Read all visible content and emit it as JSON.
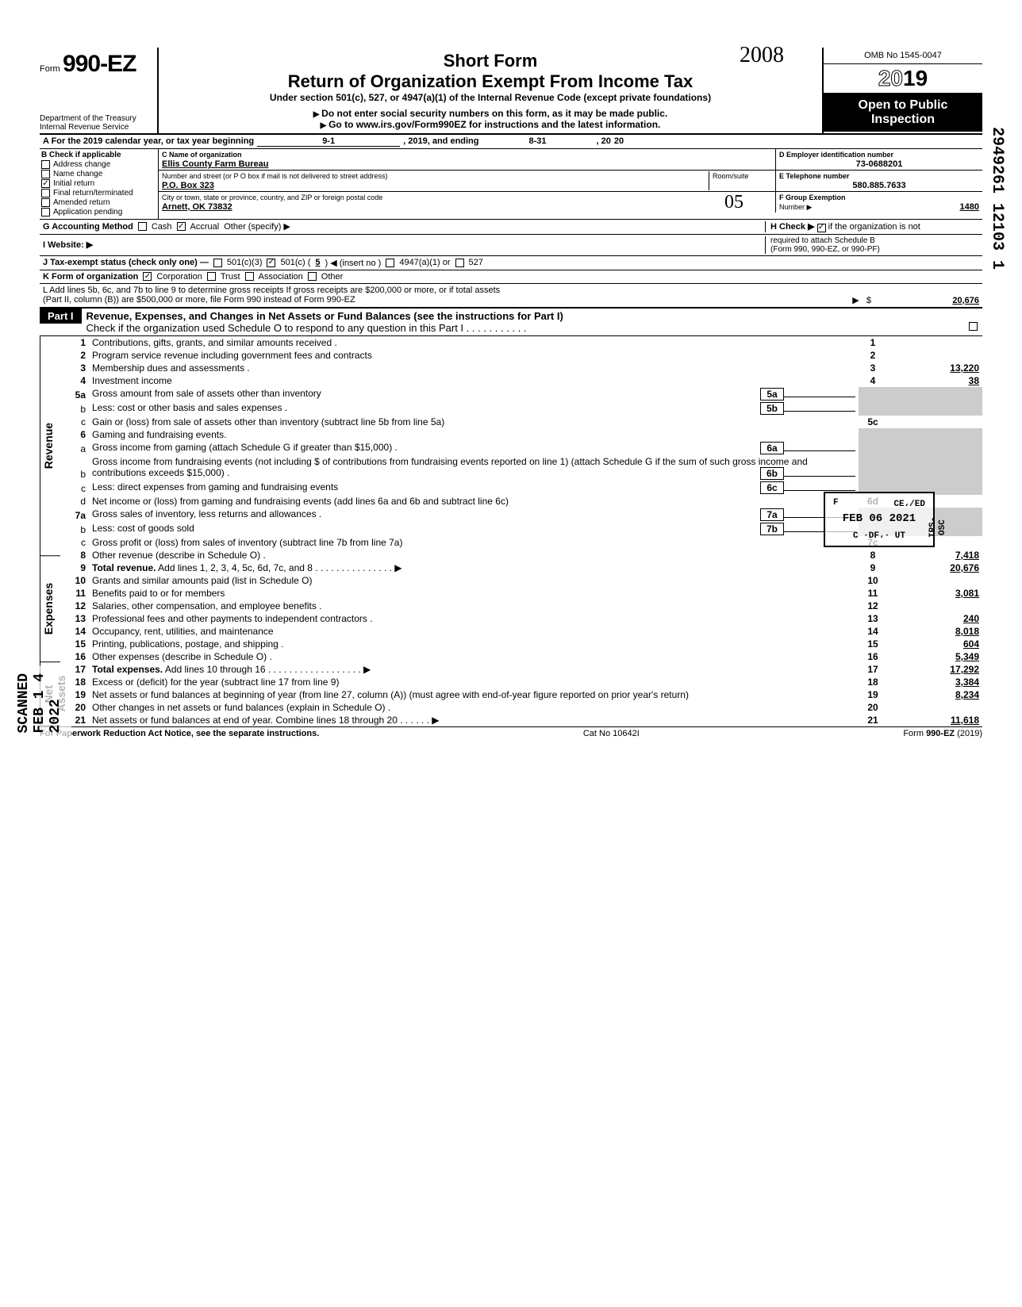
{
  "header": {
    "form_label": "Form",
    "form_number": "990-EZ",
    "short_form": "Short Form",
    "title": "Return of Organization Exempt From Income Tax",
    "subtitle": "Under section 501(c), 527, or 4947(a)(1) of the Internal Revenue Code (except private foundations)",
    "ssn_note": "Do not enter social security numbers on this form, as it may be made public.",
    "link_note": "Go to www.irs.gov/Form990EZ for instructions and the latest information.",
    "dept1": "Department of the Treasury",
    "dept2": "Internal Revenue Service",
    "omb": "OMB No 1545-0047",
    "year_outline": "20",
    "year_bold": "19",
    "open1": "Open to Public",
    "open2": "Inspection",
    "handwritten_year": "2008"
  },
  "row_a": {
    "label": "A  For the 2019 calendar year, or tax year beginning",
    "begin": "9-1",
    "mid": ", 2019, and ending",
    "end": "8-31",
    "tail": ", 20",
    "tail_yr": "20"
  },
  "col_b": {
    "header": "B  Check if applicable",
    "opts": [
      "Address change",
      "Name change",
      "Initial return",
      "Final return/terminated",
      "Amended return",
      "Application pending"
    ],
    "checked_idx": 2
  },
  "org": {
    "c_label": "C  Name of organization",
    "name": "Ellis County Farm Bureau",
    "addr_label": "Number and street (or P O  box if mail is not delivered to street address)",
    "addr": "P.O. Box 323",
    "city_label": "City or town, state or province, country, and ZIP or foreign postal code",
    "city": "Arnett, OK  73832",
    "room_label": "Room/suite",
    "d_label": "D Employer identification number",
    "ein": "73-0688201",
    "e_label": "E Telephone number",
    "phone": "580.885.7633",
    "f_label": "F Group Exemption",
    "f_label2": "Number ▶",
    "group_num": "1480",
    "handwritten_05": "05"
  },
  "g": {
    "label": "G  Accounting Method",
    "cash": "Cash",
    "accrual": "Accrual",
    "other": "Other (specify) ▶",
    "accrual_checked": true
  },
  "h": {
    "label": "H  Check ▶",
    "checked": true,
    "text1": "if the organization is not",
    "text2": "required to attach Schedule B",
    "text3": "(Form 990, 990-EZ, or 990-PF)"
  },
  "i": {
    "label": "I   Website: ▶"
  },
  "j": {
    "label": "J  Tax-exempt status (check only one) —",
    "o1": "501(c)(3)",
    "o2": "501(c) (",
    "insert": "5",
    "o2b": ") ◀ (insert no )",
    "o3": "4947(a)(1) or",
    "o4": "527",
    "o2_checked": true
  },
  "k": {
    "label": "K  Form of organization",
    "o1": "Corporation",
    "o2": "Trust",
    "o3": "Association",
    "o4": "Other",
    "o1_checked": true
  },
  "l": {
    "line1": "L  Add lines 5b, 6c, and 7b to line 9 to determine gross receipts  If gross receipts are $200,000 or more, or if total assets",
    "line2": "(Part II, column (B)) are $500,000 or more, file Form 990 instead of Form 990-EZ",
    "arrow": "▶",
    "dollar": "$",
    "amount": "20,676"
  },
  "part1": {
    "label": "Part I",
    "title": "Revenue, Expenses, and Changes in Net Assets or Fund Balances (see the instructions for Part I)",
    "sched_o": "Check if the organization used Schedule O to respond to any question in this Part I  .   .   .   .   .   .   .   .   .   .   ."
  },
  "side_labels": {
    "revenue": "Revenue",
    "expenses": "Expenses",
    "net_assets": "Net Assets"
  },
  "lines": [
    {
      "n": "1",
      "d": "Contributions, gifts, grants, and similar amounts received .",
      "box": "1",
      "amt": ""
    },
    {
      "n": "2",
      "d": "Program service revenue including government fees and contracts",
      "box": "2",
      "amt": ""
    },
    {
      "n": "3",
      "d": "Membership dues and assessments .",
      "box": "3",
      "amt": "13,220"
    },
    {
      "n": "4",
      "d": "Investment income",
      "box": "4",
      "amt": "38"
    },
    {
      "n": "5a",
      "d": "Gross amount from sale of assets other than inventory",
      "mid": "5a"
    },
    {
      "n": "b",
      "d": "Less: cost or other basis and sales expenses .",
      "mid": "5b"
    },
    {
      "n": "c",
      "d": "Gain or (loss) from sale of assets other than inventory (subtract line 5b from line 5a)",
      "box": "5c",
      "amt": ""
    },
    {
      "n": "6",
      "d": "Gaming and fundraising events."
    },
    {
      "n": "a",
      "d": "Gross income from gaming (attach Schedule G if greater than $15,000) .",
      "mid": "6a"
    },
    {
      "n": "b",
      "d": "Gross income from fundraising events (not including  $                          of contributions from fundraising events reported on line 1) (attach Schedule G if the sum of such gross income and contributions exceeds $15,000) .",
      "mid": "6b"
    },
    {
      "n": "c",
      "d": "Less: direct expenses from gaming and fundraising events",
      "mid": "6c"
    },
    {
      "n": "d",
      "d": "Net income or (loss) from gaming and fundraising events (add lines 6a and 6b and subtract line 6c)",
      "box": "6d",
      "amt": ""
    },
    {
      "n": "7a",
      "d": "Gross sales of inventory, less returns and allowances .",
      "mid": "7a"
    },
    {
      "n": "b",
      "d": "Less: cost of goods sold",
      "mid": "7b"
    },
    {
      "n": "c",
      "d": "Gross profit or (loss) from sales of inventory (subtract line 7b from line 7a)",
      "box": "7c",
      "amt": ""
    },
    {
      "n": "8",
      "d": "Other revenue (describe in Schedule O) .",
      "box": "8",
      "amt": "7,418"
    },
    {
      "n": "9",
      "d": "Total revenue. Add lines 1, 2, 3, 4, 5c, 6d, 7c, and 8   .   .   .   .   .   .   .   .   .   .   .   .   .   .   . ▶",
      "box": "9",
      "amt": "20,676",
      "bold": true
    },
    {
      "n": "10",
      "d": "Grants and similar amounts paid (list in Schedule O)",
      "box": "10",
      "amt": ""
    },
    {
      "n": "11",
      "d": "Benefits paid to or for members",
      "box": "11",
      "amt": "3,081"
    },
    {
      "n": "12",
      "d": "Salaries, other compensation, and employee benefits .",
      "box": "12",
      "amt": ""
    },
    {
      "n": "13",
      "d": "Professional fees and other payments to independent contractors .",
      "box": "13",
      "amt": "240"
    },
    {
      "n": "14",
      "d": "Occupancy, rent, utilities, and maintenance",
      "box": "14",
      "amt": "8,018"
    },
    {
      "n": "15",
      "d": "Printing, publications, postage, and shipping .",
      "box": "15",
      "amt": "604"
    },
    {
      "n": "16",
      "d": "Other expenses (describe in Schedule O) .",
      "box": "16",
      "amt": "5,349"
    },
    {
      "n": "17",
      "d": "Total expenses. Add lines 10 through 16  .   .   .   .   .   .   .   .   .   .   .   .   .   .   .   .   .   . ▶",
      "box": "17",
      "amt": "17,292",
      "bold": true
    },
    {
      "n": "18",
      "d": "Excess or (deficit) for the year (subtract line 17 from line 9)",
      "box": "18",
      "amt": "3,384"
    },
    {
      "n": "19",
      "d": "Net assets or fund balances at beginning of year (from line 27, column (A)) (must agree with end-of-year figure reported on prior year's return)",
      "box": "19",
      "amt": "8,234"
    },
    {
      "n": "20",
      "d": "Other changes in net assets or fund balances (explain in Schedule O) .",
      "box": "20",
      "amt": ""
    },
    {
      "n": "21",
      "d": "Net assets or fund balances at end of year. Combine lines 18 through 20   .   .   .   .   .   . ▶",
      "box": "21",
      "amt": "11,618"
    }
  ],
  "footer": {
    "left": "For Paperwork Reduction Act Notice, see the separate instructions.",
    "mid": "Cat No  10642I",
    "right": "Form 990-EZ  (2019)"
  },
  "stamps": {
    "received_f": "F",
    "received_ceved": "CE،/ED",
    "received_date": "FEB 06 2021",
    "received_loc": "C   ·DF،·  UT",
    "irs_osc": "IRS-OSC",
    "scanned": "SCANNED FEB 1 4 2022",
    "margin_num": "2949261 12103  1"
  },
  "colors": {
    "black": "#000000",
    "white": "#ffffff",
    "shade": "#cccccc"
  }
}
